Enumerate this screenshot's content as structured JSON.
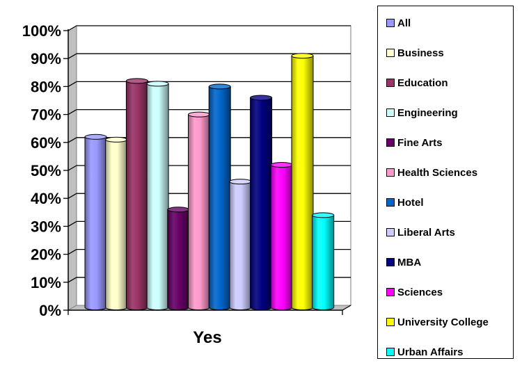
{
  "chart_data": {
    "type": "bar",
    "categories": [
      "Yes"
    ],
    "y_ticks": [
      "0%",
      "10%",
      "20%",
      "30%",
      "40%",
      "50%",
      "60%",
      "70%",
      "80%",
      "90%",
      "100%"
    ],
    "ylim": [
      0,
      100
    ],
    "grid": true,
    "legend_position": "right",
    "series": [
      {
        "name": "All",
        "values": [
          61
        ],
        "color": "#9999ff"
      },
      {
        "name": "Business",
        "values": [
          60
        ],
        "color": "#ffffcc"
      },
      {
        "name": "Education",
        "values": [
          81
        ],
        "color": "#993366"
      },
      {
        "name": "Engineering",
        "values": [
          80
        ],
        "color": "#ccffff"
      },
      {
        "name": "Fine Arts",
        "values": [
          35
        ],
        "color": "#660066"
      },
      {
        "name": "Health Sciences",
        "values": [
          69
        ],
        "color": "#ff99cc"
      },
      {
        "name": "Hotel",
        "values": [
          79
        ],
        "color": "#0066cc"
      },
      {
        "name": "Liberal Arts",
        "values": [
          45
        ],
        "color": "#ccccff"
      },
      {
        "name": "MBA",
        "values": [
          75
        ],
        "color": "#000080"
      },
      {
        "name": "Sciences",
        "values": [
          51
        ],
        "color": "#ff00ff"
      },
      {
        "name": "University College",
        "values": [
          90
        ],
        "color": "#ffff00"
      },
      {
        "name": "Urban Affairs",
        "values": [
          33
        ],
        "color": "#00ffff"
      }
    ]
  }
}
